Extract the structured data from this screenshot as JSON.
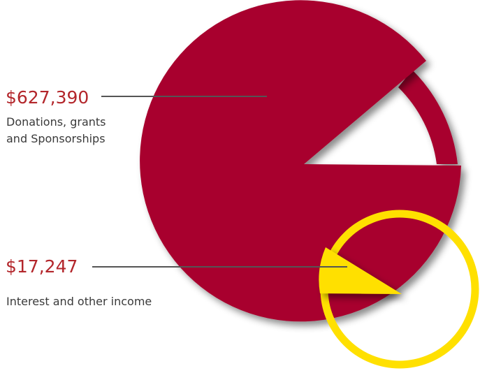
{
  "chart_data": {
    "type": "pie",
    "categories": [
      "Donations, grants and Sponsorships",
      "Interest and other income"
    ],
    "values": [
      627390,
      17247
    ],
    "value_labels": [
      "$627,390",
      "$17,247"
    ],
    "colors": {
      "donations": "#a8002f",
      "interest": "#ffe000",
      "label_text": "#b3262b",
      "leader_line": "#555555"
    }
  },
  "labels": {
    "donations": {
      "amount": "$627,390",
      "line1": "Donations, grants",
      "line2": "and Sponsorships"
    },
    "interest": {
      "amount": "$17,247",
      "text": "Interest and other income"
    }
  }
}
